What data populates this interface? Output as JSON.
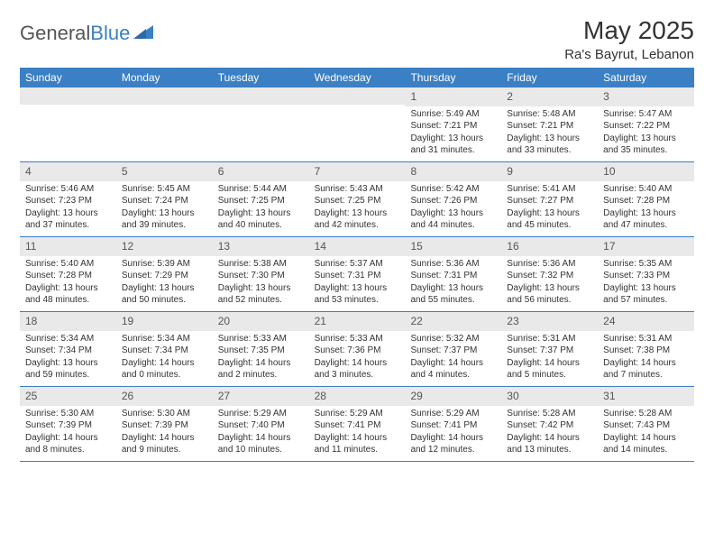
{
  "logo": {
    "text_gray": "General",
    "text_blue": "Blue"
  },
  "title": "May 2025",
  "location": "Ra's Bayrut, Lebanon",
  "colors": {
    "header_bg": "#3b7fc4",
    "header_text": "#ffffff",
    "daynum_bg": "#e9e9e9",
    "text": "#333333",
    "border": "#3b7fc4"
  },
  "weekdays": [
    "Sunday",
    "Monday",
    "Tuesday",
    "Wednesday",
    "Thursday",
    "Friday",
    "Saturday"
  ],
  "weeks": [
    [
      {
        "day": "",
        "lines": [
          "",
          "",
          "",
          ""
        ]
      },
      {
        "day": "",
        "lines": [
          "",
          "",
          "",
          ""
        ]
      },
      {
        "day": "",
        "lines": [
          "",
          "",
          "",
          ""
        ]
      },
      {
        "day": "",
        "lines": [
          "",
          "",
          "",
          ""
        ]
      },
      {
        "day": "1",
        "lines": [
          "Sunrise: 5:49 AM",
          "Sunset: 7:21 PM",
          "Daylight: 13 hours",
          "and 31 minutes."
        ]
      },
      {
        "day": "2",
        "lines": [
          "Sunrise: 5:48 AM",
          "Sunset: 7:21 PM",
          "Daylight: 13 hours",
          "and 33 minutes."
        ]
      },
      {
        "day": "3",
        "lines": [
          "Sunrise: 5:47 AM",
          "Sunset: 7:22 PM",
          "Daylight: 13 hours",
          "and 35 minutes."
        ]
      }
    ],
    [
      {
        "day": "4",
        "lines": [
          "Sunrise: 5:46 AM",
          "Sunset: 7:23 PM",
          "Daylight: 13 hours",
          "and 37 minutes."
        ]
      },
      {
        "day": "5",
        "lines": [
          "Sunrise: 5:45 AM",
          "Sunset: 7:24 PM",
          "Daylight: 13 hours",
          "and 39 minutes."
        ]
      },
      {
        "day": "6",
        "lines": [
          "Sunrise: 5:44 AM",
          "Sunset: 7:25 PM",
          "Daylight: 13 hours",
          "and 40 minutes."
        ]
      },
      {
        "day": "7",
        "lines": [
          "Sunrise: 5:43 AM",
          "Sunset: 7:25 PM",
          "Daylight: 13 hours",
          "and 42 minutes."
        ]
      },
      {
        "day": "8",
        "lines": [
          "Sunrise: 5:42 AM",
          "Sunset: 7:26 PM",
          "Daylight: 13 hours",
          "and 44 minutes."
        ]
      },
      {
        "day": "9",
        "lines": [
          "Sunrise: 5:41 AM",
          "Sunset: 7:27 PM",
          "Daylight: 13 hours",
          "and 45 minutes."
        ]
      },
      {
        "day": "10",
        "lines": [
          "Sunrise: 5:40 AM",
          "Sunset: 7:28 PM",
          "Daylight: 13 hours",
          "and 47 minutes."
        ]
      }
    ],
    [
      {
        "day": "11",
        "lines": [
          "Sunrise: 5:40 AM",
          "Sunset: 7:28 PM",
          "Daylight: 13 hours",
          "and 48 minutes."
        ]
      },
      {
        "day": "12",
        "lines": [
          "Sunrise: 5:39 AM",
          "Sunset: 7:29 PM",
          "Daylight: 13 hours",
          "and 50 minutes."
        ]
      },
      {
        "day": "13",
        "lines": [
          "Sunrise: 5:38 AM",
          "Sunset: 7:30 PM",
          "Daylight: 13 hours",
          "and 52 minutes."
        ]
      },
      {
        "day": "14",
        "lines": [
          "Sunrise: 5:37 AM",
          "Sunset: 7:31 PM",
          "Daylight: 13 hours",
          "and 53 minutes."
        ]
      },
      {
        "day": "15",
        "lines": [
          "Sunrise: 5:36 AM",
          "Sunset: 7:31 PM",
          "Daylight: 13 hours",
          "and 55 minutes."
        ]
      },
      {
        "day": "16",
        "lines": [
          "Sunrise: 5:36 AM",
          "Sunset: 7:32 PM",
          "Daylight: 13 hours",
          "and 56 minutes."
        ]
      },
      {
        "day": "17",
        "lines": [
          "Sunrise: 5:35 AM",
          "Sunset: 7:33 PM",
          "Daylight: 13 hours",
          "and 57 minutes."
        ]
      }
    ],
    [
      {
        "day": "18",
        "lines": [
          "Sunrise: 5:34 AM",
          "Sunset: 7:34 PM",
          "Daylight: 13 hours",
          "and 59 minutes."
        ]
      },
      {
        "day": "19",
        "lines": [
          "Sunrise: 5:34 AM",
          "Sunset: 7:34 PM",
          "Daylight: 14 hours",
          "and 0 minutes."
        ]
      },
      {
        "day": "20",
        "lines": [
          "Sunrise: 5:33 AM",
          "Sunset: 7:35 PM",
          "Daylight: 14 hours",
          "and 2 minutes."
        ]
      },
      {
        "day": "21",
        "lines": [
          "Sunrise: 5:33 AM",
          "Sunset: 7:36 PM",
          "Daylight: 14 hours",
          "and 3 minutes."
        ]
      },
      {
        "day": "22",
        "lines": [
          "Sunrise: 5:32 AM",
          "Sunset: 7:37 PM",
          "Daylight: 14 hours",
          "and 4 minutes."
        ]
      },
      {
        "day": "23",
        "lines": [
          "Sunrise: 5:31 AM",
          "Sunset: 7:37 PM",
          "Daylight: 14 hours",
          "and 5 minutes."
        ]
      },
      {
        "day": "24",
        "lines": [
          "Sunrise: 5:31 AM",
          "Sunset: 7:38 PM",
          "Daylight: 14 hours",
          "and 7 minutes."
        ]
      }
    ],
    [
      {
        "day": "25",
        "lines": [
          "Sunrise: 5:30 AM",
          "Sunset: 7:39 PM",
          "Daylight: 14 hours",
          "and 8 minutes."
        ]
      },
      {
        "day": "26",
        "lines": [
          "Sunrise: 5:30 AM",
          "Sunset: 7:39 PM",
          "Daylight: 14 hours",
          "and 9 minutes."
        ]
      },
      {
        "day": "27",
        "lines": [
          "Sunrise: 5:29 AM",
          "Sunset: 7:40 PM",
          "Daylight: 14 hours",
          "and 10 minutes."
        ]
      },
      {
        "day": "28",
        "lines": [
          "Sunrise: 5:29 AM",
          "Sunset: 7:41 PM",
          "Daylight: 14 hours",
          "and 11 minutes."
        ]
      },
      {
        "day": "29",
        "lines": [
          "Sunrise: 5:29 AM",
          "Sunset: 7:41 PM",
          "Daylight: 14 hours",
          "and 12 minutes."
        ]
      },
      {
        "day": "30",
        "lines": [
          "Sunrise: 5:28 AM",
          "Sunset: 7:42 PM",
          "Daylight: 14 hours",
          "and 13 minutes."
        ]
      },
      {
        "day": "31",
        "lines": [
          "Sunrise: 5:28 AM",
          "Sunset: 7:43 PM",
          "Daylight: 14 hours",
          "and 14 minutes."
        ]
      }
    ]
  ]
}
